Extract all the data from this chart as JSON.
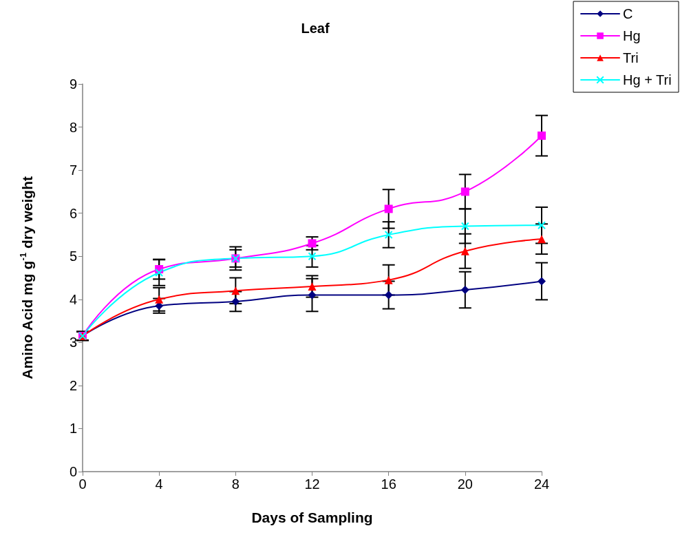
{
  "chart_data": {
    "type": "line",
    "title": "Leaf",
    "xlabel": "Days of Sampling",
    "ylabel": "Amino Acid mg g$^{-1}$ dry weight",
    "x": [
      0,
      4,
      8,
      12,
      16,
      20,
      24
    ],
    "xlim": [
      0,
      24
    ],
    "xticks": [
      0,
      4,
      8,
      12,
      16,
      20,
      24
    ],
    "ylim": [
      0,
      9
    ],
    "yticks": [
      0,
      1,
      2,
      3,
      4,
      5,
      6,
      7,
      8,
      9
    ],
    "grid": false,
    "legend": "top right",
    "series": [
      {
        "name": "C",
        "color": "#000080",
        "marker": "diamond",
        "values": [
          3.15,
          3.85,
          3.95,
          4.1,
          4.1,
          4.22,
          4.42
        ],
        "errors": [
          0.1,
          0.17,
          0.23,
          0.38,
          0.32,
          0.42,
          0.43
        ]
      },
      {
        "name": "Hg",
        "color": "#ff00ff",
        "marker": "square",
        "values": [
          3.15,
          4.7,
          4.95,
          5.3,
          6.1,
          6.5,
          7.8
        ],
        "errors": [
          0.1,
          0.23,
          0.27,
          0.15,
          0.45,
          0.4,
          0.47
        ]
      },
      {
        "name": "Tri",
        "color": "#ff0000",
        "marker": "triangle",
        "values": [
          3.15,
          4.0,
          4.2,
          4.3,
          4.45,
          5.12,
          5.4
        ],
        "errors": [
          0.1,
          0.27,
          0.3,
          0.25,
          0.35,
          0.4,
          0.35
        ]
      },
      {
        "name": "Hg + Tri",
        "color": "#00ffff",
        "marker": "cross",
        "values": [
          3.15,
          4.62,
          4.95,
          5.0,
          5.5,
          5.7,
          5.72
        ],
        "errors": [
          0.1,
          0.3,
          0.2,
          0.25,
          0.3,
          0.4,
          0.42
        ]
      }
    ]
  }
}
